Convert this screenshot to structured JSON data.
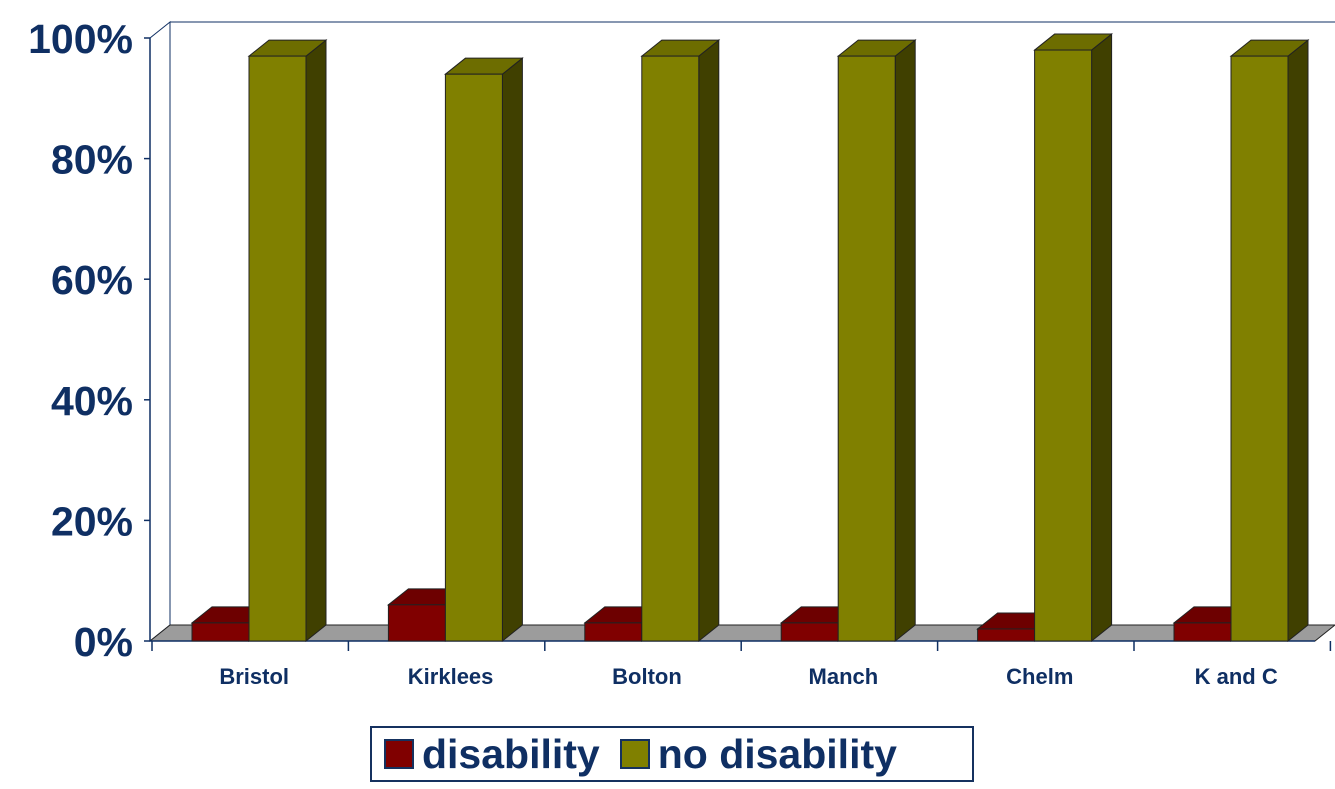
{
  "chart_data": {
    "type": "bar",
    "categories": [
      "Bristol",
      "Kirklees",
      "Bolton",
      "Manch",
      "Chelm",
      "K and C"
    ],
    "series": [
      {
        "name": "disability",
        "values": [
          3,
          6,
          3,
          3,
          2,
          3
        ],
        "color": "#800000"
      },
      {
        "name": "no disability",
        "values": [
          97,
          94,
          97,
          97,
          98,
          97
        ],
        "color": "#808000"
      }
    ],
    "y_ticks": [
      "0%",
      "20%",
      "40%",
      "60%",
      "80%",
      "100%"
    ],
    "ylim": [
      0,
      100
    ],
    "title": "",
    "xlabel": "",
    "ylabel": "",
    "grid": false,
    "legend_position": "bottom",
    "style": "3d"
  }
}
